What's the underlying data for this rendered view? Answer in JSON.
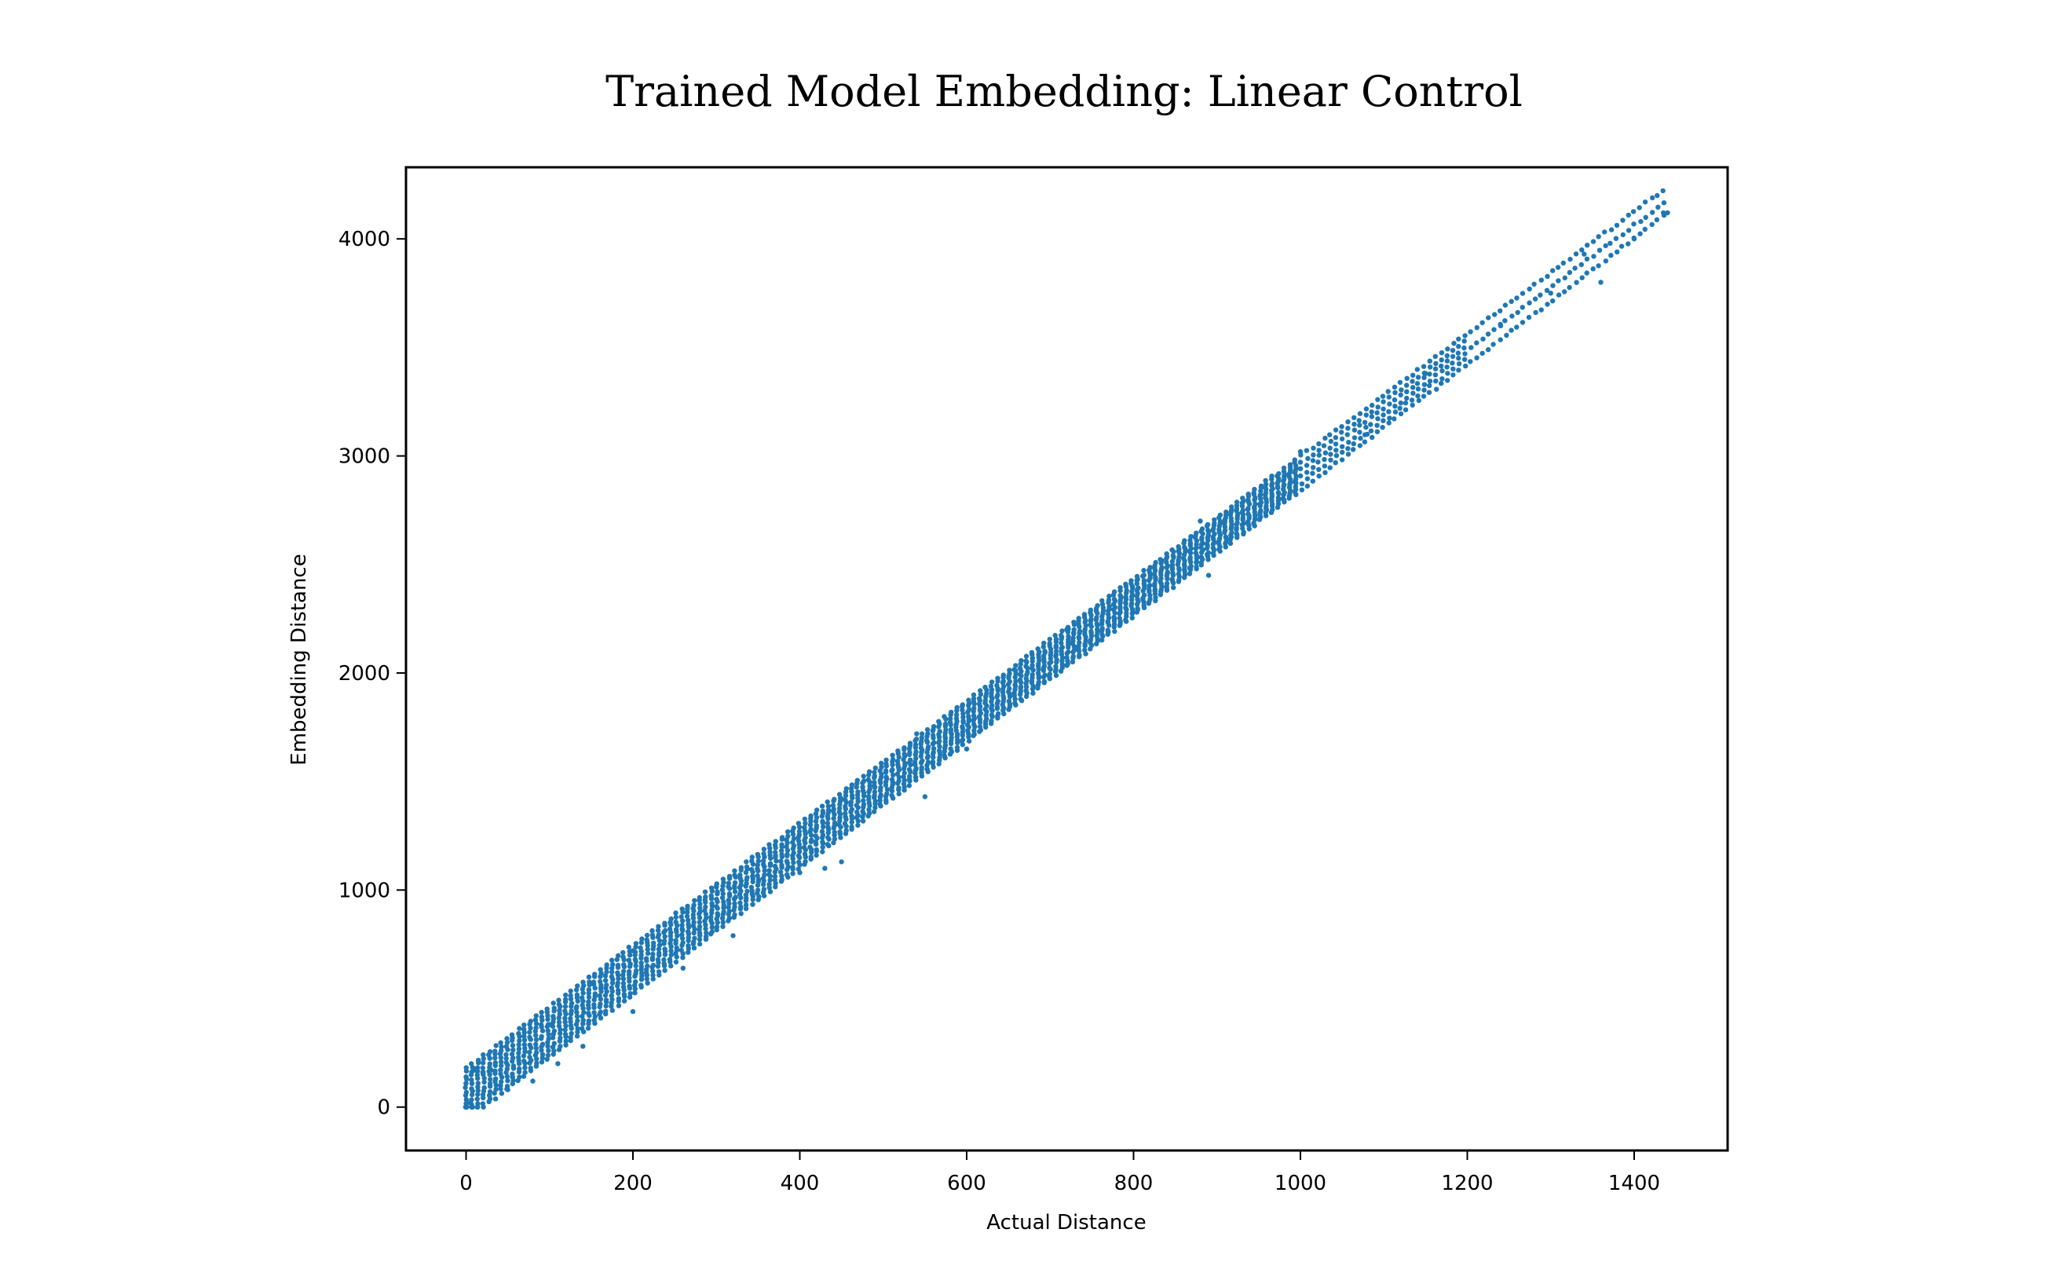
{
  "chart_data": {
    "type": "scatter",
    "title": "Trained Model Embedding: Linear Control",
    "xlabel": "Actual Distance",
    "ylabel": "Embedding Distance",
    "xlim": [
      -72,
      1512
    ],
    "ylim": [
      -200,
      4330
    ],
    "xticks": [
      0,
      200,
      400,
      600,
      800,
      1000,
      1200,
      1400
    ],
    "yticks": [
      0,
      1000,
      2000,
      3000,
      4000
    ],
    "grid": false,
    "legend": "none",
    "marker_color": "#1f77b4",
    "series": [
      {
        "trend": {
          "slope": 2.86,
          "intercept": 60,
          "x_range": [
            0,
            1440
          ]
        },
        "band_halfwidth_near": 120,
        "band_halfwidth_far": 60,
        "points": [
          {
            "x": 0,
            "y": 0
          },
          {
            "x": 0,
            "y": 110
          },
          {
            "x": 5,
            "y": 20
          },
          {
            "x": 10,
            "y": 170
          },
          {
            "x": 20,
            "y": 160
          },
          {
            "x": 30,
            "y": 170
          },
          {
            "x": 50,
            "y": 80
          },
          {
            "x": 80,
            "y": 120
          },
          {
            "x": 100,
            "y": 380
          },
          {
            "x": 110,
            "y": 200
          },
          {
            "x": 140,
            "y": 280
          },
          {
            "x": 200,
            "y": 440
          },
          {
            "x": 200,
            "y": 720
          },
          {
            "x": 260,
            "y": 640
          },
          {
            "x": 300,
            "y": 1020
          },
          {
            "x": 320,
            "y": 790
          },
          {
            "x": 400,
            "y": 1080
          },
          {
            "x": 430,
            "y": 1100
          },
          {
            "x": 450,
            "y": 1420
          },
          {
            "x": 450,
            "y": 1130
          },
          {
            "x": 540,
            "y": 1720
          },
          {
            "x": 550,
            "y": 1430
          },
          {
            "x": 600,
            "y": 1650
          },
          {
            "x": 720,
            "y": 2200
          },
          {
            "x": 880,
            "y": 2700
          },
          {
            "x": 890,
            "y": 2450
          },
          {
            "x": 1000,
            "y": 3020
          },
          {
            "x": 1080,
            "y": 3100
          },
          {
            "x": 1150,
            "y": 3380
          },
          {
            "x": 1240,
            "y": 3600
          },
          {
            "x": 1300,
            "y": 3750
          },
          {
            "x": 1340,
            "y": 3930
          },
          {
            "x": 1360,
            "y": 3800
          },
          {
            "x": 1400,
            "y": 4000
          },
          {
            "x": 1440,
            "y": 4120
          },
          {
            "x": 1435,
            "y": 4120
          }
        ]
      }
    ]
  }
}
